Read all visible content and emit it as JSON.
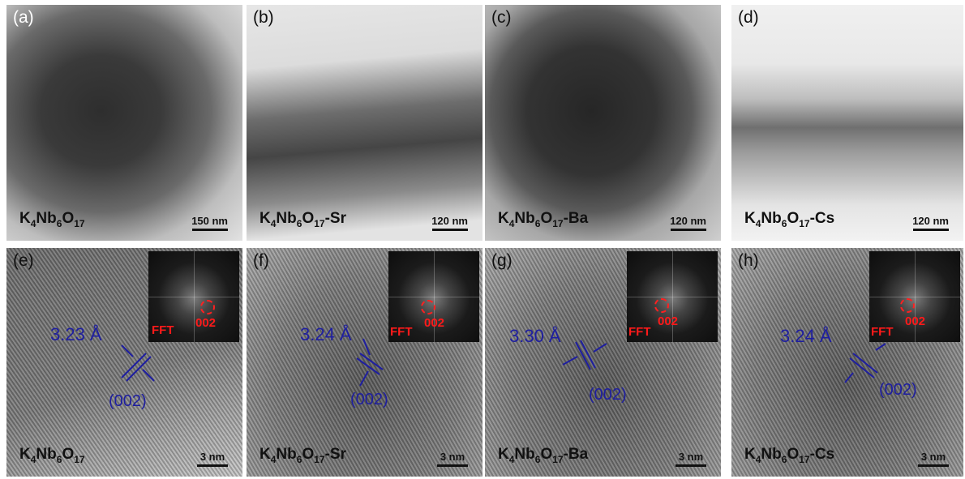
{
  "panels_top": [
    {
      "label": "(a)",
      "sample_base": "K",
      "sample_sub1": "4",
      "sample_mid": "Nb",
      "sample_sub2": "6",
      "sample_o": "O",
      "sample_sub3": "17",
      "sample_suffix": "",
      "scale": "150 nm"
    },
    {
      "label": "(b)",
      "sample_base": "K",
      "sample_sub1": "4",
      "sample_mid": "Nb",
      "sample_sub2": "6",
      "sample_o": "O",
      "sample_sub3": "17",
      "sample_suffix": "-Sr",
      "scale": "120 nm"
    },
    {
      "label": "(c)",
      "sample_base": "K",
      "sample_sub1": "4",
      "sample_mid": "Nb",
      "sample_sub2": "6",
      "sample_o": "O",
      "sample_sub3": "17",
      "sample_suffix": "-Ba",
      "scale": "120 nm"
    },
    {
      "label": "(d)",
      "sample_base": "K",
      "sample_sub1": "4",
      "sample_mid": "Nb",
      "sample_sub2": "6",
      "sample_o": "O",
      "sample_sub3": "17",
      "sample_suffix": "-Cs",
      "scale": "120 nm"
    }
  ],
  "panels_bottom": [
    {
      "label": "(e)",
      "sample_base": "K",
      "sample_sub1": "4",
      "sample_mid": "Nb",
      "sample_sub2": "6",
      "sample_o": "O",
      "sample_sub3": "17",
      "sample_suffix": "",
      "scale": "3 nm",
      "d_spacing": "3.23 Å",
      "plane": "(002)",
      "fft": "FFT",
      "fft_index": "002"
    },
    {
      "label": "(f)",
      "sample_base": "K",
      "sample_sub1": "4",
      "sample_mid": "Nb",
      "sample_sub2": "6",
      "sample_o": "O",
      "sample_sub3": "17",
      "sample_suffix": "-Sr",
      "scale": "3 nm",
      "d_spacing": "3.24 Å",
      "plane": "(002)",
      "fft": "FFT",
      "fft_index": "002"
    },
    {
      "label": "(g)",
      "sample_base": "K",
      "sample_sub1": "4",
      "sample_mid": "Nb",
      "sample_sub2": "6",
      "sample_o": "O",
      "sample_sub3": "17",
      "sample_suffix": "-Ba",
      "scale": "3 nm",
      "d_spacing": "3.30 Å",
      "plane": "(002)",
      "fft": "FFT",
      "fft_index": "002"
    },
    {
      "label": "(h)",
      "sample_base": "K",
      "sample_sub1": "4",
      "sample_mid": "Nb",
      "sample_sub2": "6",
      "sample_o": "O",
      "sample_sub3": "17",
      "sample_suffix": "-Cs",
      "scale": "3 nm",
      "d_spacing": "3.24 Å",
      "plane": "(002)",
      "fft": "FFT",
      "fft_index": "002"
    }
  ],
  "colors": {
    "annotation_blue": "#1e1ea0",
    "fft_red": "#ff1a1a"
  }
}
